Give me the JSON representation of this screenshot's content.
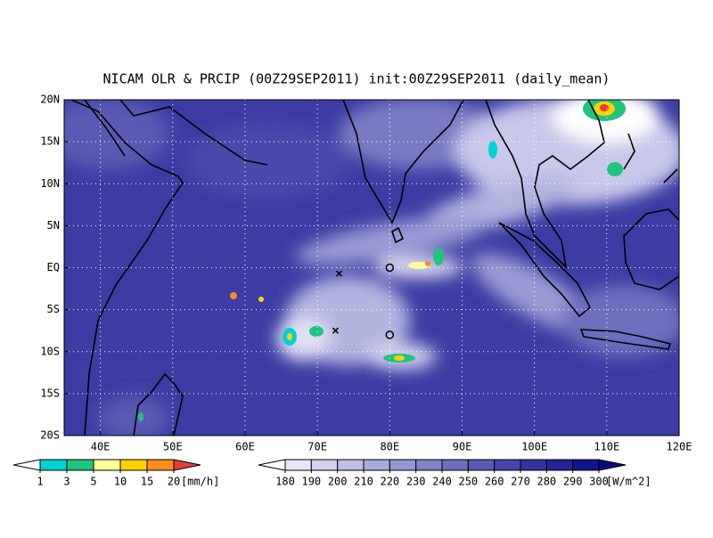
{
  "chart_data": {
    "type": "map",
    "title": "NICAM OLR & PRCIP (00Z29SEP2011) init:00Z29SEP2011 (daily_mean)",
    "xlim": [
      35,
      120
    ],
    "ylim": [
      -20,
      20
    ],
    "xticks": [
      {
        "value": 40,
        "label": "40E"
      },
      {
        "value": 50,
        "label": "50E"
      },
      {
        "value": 60,
        "label": "60E"
      },
      {
        "value": 70,
        "label": "70E"
      },
      {
        "value": 80,
        "label": "80E"
      },
      {
        "value": 90,
        "label": "90E"
      },
      {
        "value": 100,
        "label": "100E"
      },
      {
        "value": 110,
        "label": "110E"
      },
      {
        "value": 120,
        "label": "120E"
      }
    ],
    "yticks": [
      {
        "value": 20,
        "label": "20N"
      },
      {
        "value": 15,
        "label": "15N"
      },
      {
        "value": 10,
        "label": "10N"
      },
      {
        "value": 5,
        "label": "5N"
      },
      {
        "value": 0,
        "label": "EQ"
      },
      {
        "value": -5,
        "label": "5S"
      },
      {
        "value": -10,
        "label": "10S"
      },
      {
        "value": -15,
        "label": "15S"
      },
      {
        "value": -20,
        "label": "20S"
      }
    ],
    "grid": true,
    "markers": [
      {
        "symbol": "x",
        "lon": 73,
        "lat": -0.7
      },
      {
        "symbol": "x",
        "lon": 72.5,
        "lat": -7.5
      },
      {
        "symbol": "o",
        "lon": 80,
        "lat": 0
      },
      {
        "symbol": "o",
        "lon": 80,
        "lat": -8
      }
    ],
    "colorbars": [
      {
        "levels": [
          1,
          3,
          5,
          10,
          15,
          20
        ],
        "unit": "[mm/h]",
        "colors": [
          "#ffffff",
          "#00d2d2",
          "#1fc47f",
          "#ffff96",
          "#ffd200",
          "#ff8c1e",
          "#e63c3c"
        ]
      },
      {
        "levels": [
          180,
          190,
          200,
          210,
          220,
          230,
          240,
          250,
          260,
          270,
          280,
          290,
          300
        ],
        "unit": "[W/m^2]",
        "colors": [
          "#ffffff",
          "#e6e6f5",
          "#d2d2ee",
          "#bebee6",
          "#aaaadc",
          "#9696d2",
          "#8282c8",
          "#6e6ebe",
          "#5a5ab4",
          "#4646aa",
          "#3232a0",
          "#232396",
          "#14148c",
          "#0a0a80"
        ]
      }
    ]
  }
}
